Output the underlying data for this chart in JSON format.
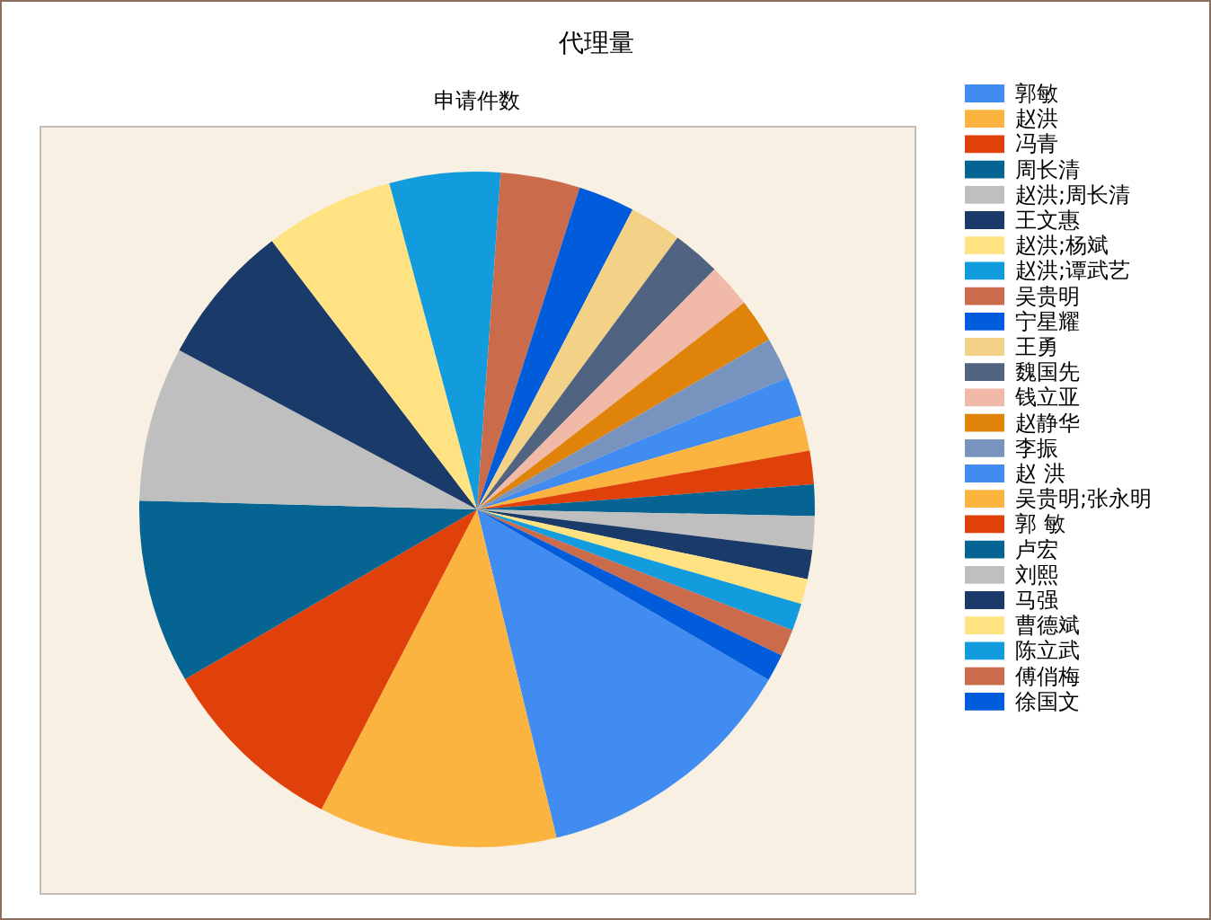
{
  "chart_data": {
    "type": "pie",
    "title": "代理量",
    "subtitle": "申请件数",
    "categories": [
      "郭敏",
      "赵洪",
      "冯青",
      "周长清",
      "赵洪;周长清",
      "王文惠",
      "赵洪;杨斌",
      "赵洪;谭武艺",
      "吴贵明",
      "宁星耀",
      "王勇",
      "魏国先",
      "钱立亚",
      "赵静华",
      "李振",
      "赵 洪",
      "吴贵明;张永明",
      "郭 敏",
      "卢宏",
      "刘熙",
      "马强",
      "曹德斌",
      "陈立武",
      "傅俏梅",
      "徐国文"
    ],
    "values": [
      12.8,
      11.4,
      9.0,
      8.8,
      7.4,
      6.8,
      6.2,
      5.3,
      3.8,
      2.7,
      2.5,
      2.3,
      2.1,
      2.1,
      2.0,
      1.9,
      1.7,
      1.6,
      1.5,
      1.6,
      1.4,
      1.2,
      1.3,
      1.3,
      1.3
    ],
    "colors": [
      "#418cf0",
      "#fcb441",
      "#e0400a",
      "#056492",
      "#bfbfbf",
      "#1a3b69",
      "#ffe382",
      "#129cdd",
      "#ca6b4b",
      "#005cdb",
      "#f3d288",
      "#506381",
      "#f1b9a8",
      "#e0830a",
      "#7893be",
      "#418cf0",
      "#fcb441",
      "#e0400a",
      "#056492",
      "#bfbfbf",
      "#1a3b69",
      "#ffe382",
      "#129cdd",
      "#ca6b4b",
      "#005cdb"
    ],
    "legend": "right"
  }
}
